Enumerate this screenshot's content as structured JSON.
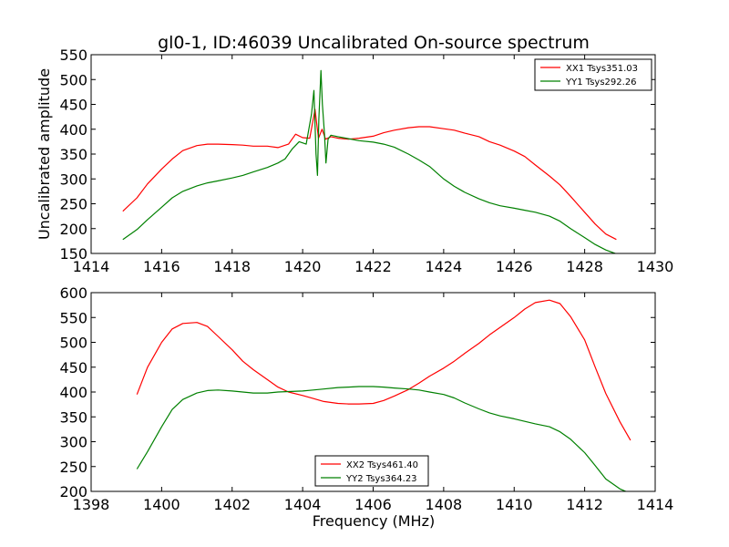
{
  "chart_data": [
    {
      "type": "line",
      "title": "gl0-1, ID:46039 Uncalibrated On-source spectrum",
      "xlabel": "",
      "ylabel": "Uncalibrated amplitude",
      "xlim": [
        1414,
        1430
      ],
      "ylim": [
        150,
        550
      ],
      "xticks": [
        "1414",
        "1416",
        "1418",
        "1420",
        "1422",
        "1424",
        "1426",
        "1428",
        "1430"
      ],
      "yticks": [
        "150",
        "200",
        "250",
        "300",
        "350",
        "400",
        "450",
        "500",
        "550"
      ],
      "grid": false,
      "legend_position": "top-right",
      "series": [
        {
          "name": "XX1 Tsys351.03",
          "color": "#ff0000",
          "x": [
            1414.9,
            1415.3,
            1415.6,
            1416.0,
            1416.3,
            1416.6,
            1417.0,
            1417.3,
            1417.6,
            1418.0,
            1418.3,
            1418.6,
            1419.0,
            1419.3,
            1419.6,
            1419.8,
            1420.0,
            1420.2,
            1420.35,
            1420.45,
            1420.55,
            1420.65,
            1420.8,
            1421.0,
            1421.3,
            1421.6,
            1422.0,
            1422.3,
            1422.6,
            1423.0,
            1423.3,
            1423.6,
            1424.0,
            1424.3,
            1424.6,
            1425.0,
            1425.3,
            1425.6,
            1426.0,
            1426.3,
            1426.6,
            1427.0,
            1427.3,
            1427.6,
            1428.0,
            1428.3,
            1428.6,
            1428.9
          ],
          "y": [
            235,
            262,
            290,
            320,
            340,
            357,
            367,
            370,
            370,
            369,
            368,
            366,
            366,
            363,
            370,
            390,
            383,
            382,
            440,
            382,
            400,
            380,
            385,
            382,
            380,
            382,
            386,
            393,
            398,
            403,
            405,
            405,
            401,
            398,
            392,
            385,
            375,
            368,
            356,
            345,
            328,
            306,
            288,
            265,
            233,
            209,
            189,
            178
          ]
        },
        {
          "name": "YY1 Tsys292.26",
          "color": "#008000",
          "x": [
            1414.9,
            1415.3,
            1415.6,
            1416.0,
            1416.3,
            1416.6,
            1417.0,
            1417.3,
            1417.6,
            1418.0,
            1418.3,
            1418.6,
            1419.0,
            1419.3,
            1419.5,
            1419.7,
            1419.9,
            1420.1,
            1420.25,
            1420.32,
            1420.38,
            1420.42,
            1420.46,
            1420.52,
            1420.56,
            1420.62,
            1420.66,
            1420.72,
            1420.8,
            1421.0,
            1421.3,
            1421.6,
            1422.0,
            1422.3,
            1422.6,
            1423.0,
            1423.3,
            1423.6,
            1424.0,
            1424.3,
            1424.6,
            1425.0,
            1425.3,
            1425.6,
            1426.0,
            1426.3,
            1426.6,
            1427.0,
            1427.3,
            1427.6,
            1428.0,
            1428.3,
            1428.6,
            1428.9
          ],
          "y": [
            178,
            198,
            218,
            243,
            262,
            275,
            286,
            292,
            296,
            302,
            307,
            314,
            323,
            332,
            340,
            360,
            375,
            370,
            430,
            478,
            350,
            307,
            420,
            518,
            450,
            390,
            332,
            380,
            388,
            385,
            381,
            377,
            374,
            370,
            364,
            350,
            338,
            325,
            300,
            285,
            273,
            260,
            252,
            246,
            241,
            237,
            233,
            225,
            215,
            200,
            182,
            168,
            157,
            149
          ]
        }
      ]
    },
    {
      "type": "line",
      "title": "",
      "xlabel": "Frequency (MHz)",
      "ylabel": "",
      "xlim": [
        1398,
        1414
      ],
      "ylim": [
        200,
        600
      ],
      "xticks": [
        "1398",
        "1400",
        "1402",
        "1404",
        "1406",
        "1408",
        "1410",
        "1412",
        "1414"
      ],
      "yticks": [
        "200",
        "250",
        "300",
        "350",
        "400",
        "450",
        "500",
        "550",
        "600"
      ],
      "grid": false,
      "legend_position": "bottom-center",
      "series": [
        {
          "name": "XX2 Tsys461.40",
          "color": "#ff0000",
          "x": [
            1399.3,
            1399.6,
            1400.0,
            1400.3,
            1400.6,
            1401.0,
            1401.3,
            1401.6,
            1402.0,
            1402.3,
            1402.6,
            1403.0,
            1403.3,
            1403.6,
            1404.0,
            1404.3,
            1404.6,
            1405.0,
            1405.3,
            1405.6,
            1406.0,
            1406.3,
            1406.6,
            1407.0,
            1407.3,
            1407.6,
            1408.0,
            1408.3,
            1408.6,
            1409.0,
            1409.3,
            1409.6,
            1410.0,
            1410.3,
            1410.6,
            1411.0,
            1411.3,
            1411.6,
            1412.0,
            1412.3,
            1412.6,
            1413.0,
            1413.3
          ],
          "y": [
            395,
            450,
            500,
            527,
            538,
            540,
            532,
            512,
            485,
            462,
            445,
            425,
            410,
            400,
            393,
            387,
            381,
            377,
            376,
            376,
            377,
            383,
            392,
            405,
            418,
            432,
            448,
            462,
            478,
            498,
            515,
            530,
            550,
            567,
            580,
            585,
            578,
            552,
            505,
            450,
            397,
            340,
            303
          ]
        },
        {
          "name": "YY2 Tsys364.23",
          "color": "#008000",
          "x": [
            1399.3,
            1399.6,
            1400.0,
            1400.3,
            1400.6,
            1401.0,
            1401.3,
            1401.6,
            1402.0,
            1402.3,
            1402.6,
            1403.0,
            1403.3,
            1403.6,
            1404.0,
            1404.3,
            1404.6,
            1405.0,
            1405.3,
            1405.6,
            1406.0,
            1406.3,
            1406.6,
            1407.0,
            1407.3,
            1407.6,
            1408.0,
            1408.3,
            1408.6,
            1409.0,
            1409.3,
            1409.6,
            1410.0,
            1410.3,
            1410.6,
            1411.0,
            1411.3,
            1411.6,
            1412.0,
            1412.3,
            1412.6,
            1413.0,
            1413.3
          ],
          "y": [
            245,
            280,
            330,
            365,
            385,
            398,
            403,
            404,
            402,
            400,
            398,
            398,
            400,
            401,
            402,
            404,
            406,
            409,
            410,
            411,
            411,
            410,
            408,
            406,
            404,
            400,
            395,
            388,
            378,
            366,
            358,
            352,
            346,
            341,
            336,
            330,
            320,
            305,
            278,
            252,
            225,
            205,
            196
          ]
        }
      ]
    }
  ]
}
